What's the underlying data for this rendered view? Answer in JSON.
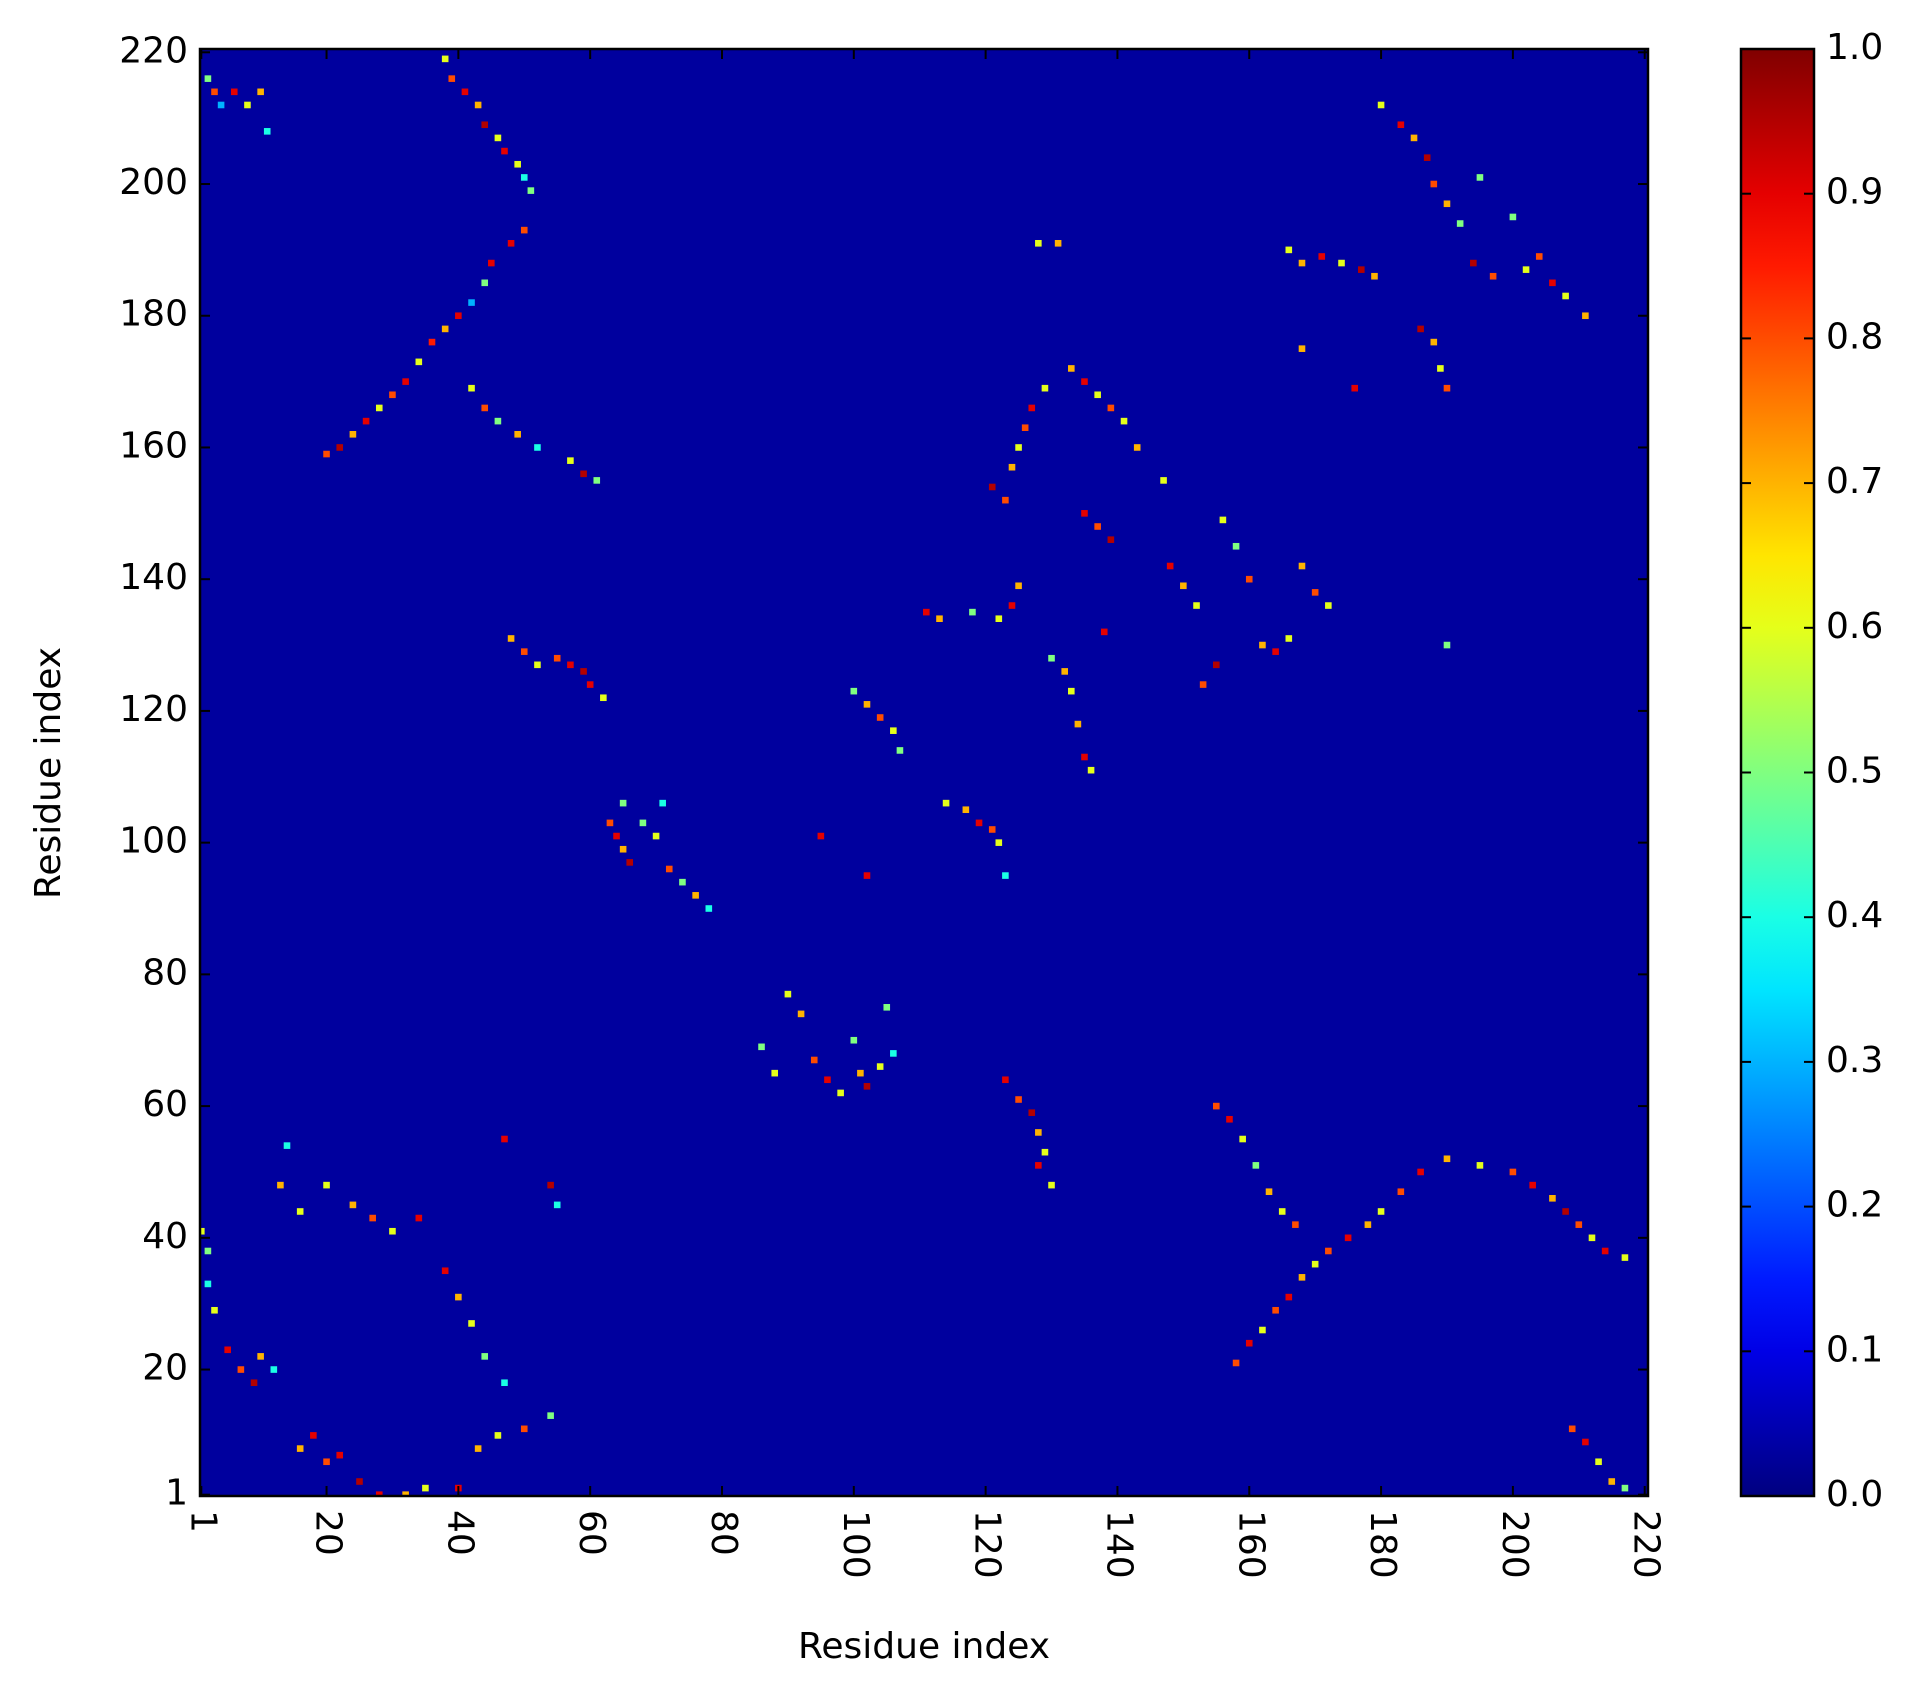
{
  "chart_data": {
    "type": "heatmap",
    "colormap": "jet",
    "x_label": "Residue index",
    "y_label": "Residue index",
    "xlim": [
      0.8,
      220.5
    ],
    "ylim": [
      0.8,
      220.5
    ],
    "xticks": [
      1,
      20,
      40,
      60,
      80,
      100,
      120,
      140,
      160,
      180,
      200,
      220
    ],
    "yticks": [
      1,
      20,
      40,
      60,
      80,
      100,
      120,
      140,
      160,
      180,
      200,
      220
    ],
    "default_value": 0.03,
    "clim": [
      0,
      1
    ],
    "cbar_ticks": [
      {
        "value": 0,
        "label": "0.0"
      },
      {
        "value": 0.1,
        "label": "0.1"
      },
      {
        "value": 0.2,
        "label": "0.2"
      },
      {
        "value": 0.3,
        "label": "0.3"
      },
      {
        "value": 0.4,
        "label": "0.4"
      },
      {
        "value": 0.5,
        "label": "0.5"
      },
      {
        "value": 0.6,
        "label": "0.6"
      },
      {
        "value": 0.7,
        "label": "0.7"
      },
      {
        "value": 0.8,
        "label": "0.8"
      },
      {
        "value": 0.9,
        "label": "0.9"
      },
      {
        "value": 1,
        "label": "1.0"
      }
    ],
    "cells": [
      [
        2,
        216,
        0.5
      ],
      [
        3,
        214,
        0.8
      ],
      [
        6,
        214,
        0.9
      ],
      [
        8,
        212,
        0.6
      ],
      [
        10,
        214,
        0.7
      ],
      [
        4,
        212,
        0.3
      ],
      [
        11,
        208,
        0.4
      ],
      [
        38,
        219,
        0.6
      ],
      [
        39,
        216,
        0.8
      ],
      [
        41,
        214,
        0.9
      ],
      [
        43,
        212,
        0.7
      ],
      [
        44,
        209,
        0.95
      ],
      [
        46,
        207,
        0.6
      ],
      [
        47,
        205,
        0.9
      ],
      [
        49,
        203,
        0.6
      ],
      [
        50,
        201,
        0.4
      ],
      [
        51,
        199,
        0.5
      ],
      [
        50,
        193,
        0.8
      ],
      [
        48,
        191,
        0.9
      ],
      [
        45,
        188,
        0.9
      ],
      [
        44,
        185,
        0.5
      ],
      [
        42,
        182,
        0.3
      ],
      [
        40,
        180,
        0.9
      ],
      [
        38,
        178,
        0.7
      ],
      [
        36,
        176,
        0.85
      ],
      [
        34,
        173,
        0.6
      ],
      [
        32,
        170,
        0.9
      ],
      [
        30,
        168,
        0.8
      ],
      [
        28,
        166,
        0.6
      ],
      [
        26,
        164,
        0.9
      ],
      [
        24,
        162,
        0.7
      ],
      [
        22,
        160,
        0.95
      ],
      [
        20,
        159,
        0.8
      ],
      [
        42,
        169,
        0.6
      ],
      [
        44,
        166,
        0.8
      ],
      [
        46,
        164,
        0.5
      ],
      [
        49,
        162,
        0.7
      ],
      [
        52,
        160,
        0.4
      ],
      [
        57,
        158,
        0.6
      ],
      [
        59,
        156,
        0.95
      ],
      [
        61,
        155,
        0.5
      ],
      [
        48,
        131,
        0.7
      ],
      [
        50,
        129,
        0.8
      ],
      [
        52,
        127,
        0.6
      ],
      [
        55,
        128,
        0.8
      ],
      [
        57,
        127,
        0.9
      ],
      [
        59,
        126,
        0.95
      ],
      [
        60,
        124,
        0.9
      ],
      [
        62,
        122,
        0.6
      ],
      [
        63,
        103,
        0.8
      ],
      [
        64,
        101,
        0.9
      ],
      [
        65,
        99,
        0.7
      ],
      [
        66,
        97,
        0.95
      ],
      [
        68,
        103,
        0.5
      ],
      [
        70,
        101,
        0.6
      ],
      [
        72,
        96,
        0.8
      ],
      [
        74,
        94,
        0.5
      ],
      [
        76,
        92,
        0.7
      ],
      [
        78,
        90,
        0.4
      ],
      [
        65,
        106,
        0.5
      ],
      [
        71,
        106,
        0.4
      ],
      [
        86,
        69,
        0.5
      ],
      [
        88,
        65,
        0.6
      ],
      [
        90,
        77,
        0.6
      ],
      [
        92,
        74,
        0.7
      ],
      [
        94,
        67,
        0.8
      ],
      [
        96,
        64,
        0.9
      ],
      [
        98,
        62,
        0.6
      ],
      [
        100,
        70,
        0.5
      ],
      [
        101,
        65,
        0.7
      ],
      [
        102,
        63,
        0.95
      ],
      [
        104,
        66,
        0.6
      ],
      [
        105,
        75,
        0.5
      ],
      [
        106,
        68,
        0.4
      ],
      [
        95,
        101,
        0.9
      ],
      [
        102,
        95,
        0.9
      ],
      [
        100,
        123,
        0.5
      ],
      [
        102,
        121,
        0.7
      ],
      [
        104,
        119,
        0.8
      ],
      [
        106,
        117,
        0.6
      ],
      [
        107,
        114,
        0.5
      ],
      [
        111,
        135,
        0.9
      ],
      [
        113,
        134,
        0.7
      ],
      [
        118,
        135,
        0.5
      ],
      [
        122,
        134,
        0.6
      ],
      [
        124,
        136,
        0.9
      ],
      [
        125,
        139,
        0.7
      ],
      [
        114,
        106,
        0.6
      ],
      [
        117,
        105,
        0.7
      ],
      [
        119,
        103,
        0.9
      ],
      [
        121,
        102,
        0.8
      ],
      [
        122,
        100,
        0.6
      ],
      [
        123,
        95,
        0.4
      ],
      [
        123,
        64,
        0.9
      ],
      [
        125,
        61,
        0.8
      ],
      [
        127,
        59,
        0.95
      ],
      [
        128,
        56,
        0.7
      ],
      [
        129,
        53,
        0.6
      ],
      [
        128,
        51,
        0.9
      ],
      [
        130,
        48,
        0.6
      ],
      [
        121,
        154,
        0.95
      ],
      [
        123,
        152,
        0.8
      ],
      [
        124,
        157,
        0.7
      ],
      [
        125,
        160,
        0.6
      ],
      [
        126,
        163,
        0.8
      ],
      [
        127,
        166,
        0.9
      ],
      [
        129,
        169,
        0.6
      ],
      [
        133,
        172,
        0.7
      ],
      [
        135,
        170,
        0.9
      ],
      [
        137,
        168,
        0.6
      ],
      [
        139,
        166,
        0.8
      ],
      [
        141,
        164,
        0.6
      ],
      [
        143,
        160,
        0.7
      ],
      [
        135,
        150,
        0.9
      ],
      [
        137,
        148,
        0.8
      ],
      [
        139,
        146,
        0.95
      ],
      [
        147,
        155,
        0.6
      ],
      [
        130,
        128,
        0.5
      ],
      [
        132,
        126,
        0.7
      ],
      [
        133,
        123,
        0.6
      ],
      [
        134,
        118,
        0.7
      ],
      [
        135,
        113,
        0.9
      ],
      [
        136,
        111,
        0.6
      ],
      [
        138,
        132,
        0.9
      ],
      [
        148,
        142,
        0.9
      ],
      [
        150,
        139,
        0.7
      ],
      [
        152,
        136,
        0.6
      ],
      [
        153,
        124,
        0.8
      ],
      [
        155,
        127,
        0.95
      ],
      [
        156,
        149,
        0.6
      ],
      [
        158,
        145,
        0.5
      ],
      [
        160,
        140,
        0.8
      ],
      [
        162,
        130,
        0.7
      ],
      [
        164,
        129,
        0.9
      ],
      [
        166,
        131,
        0.6
      ],
      [
        168,
        142,
        0.7
      ],
      [
        170,
        138,
        0.8
      ],
      [
        172,
        136,
        0.6
      ],
      [
        155,
        60,
        0.8
      ],
      [
        157,
        58,
        0.9
      ],
      [
        159,
        55,
        0.6
      ],
      [
        161,
        51,
        0.5
      ],
      [
        163,
        47,
        0.7
      ],
      [
        165,
        44,
        0.6
      ],
      [
        167,
        42,
        0.8
      ],
      [
        158,
        21,
        0.8
      ],
      [
        160,
        24,
        0.9
      ],
      [
        162,
        26,
        0.6
      ],
      [
        164,
        29,
        0.8
      ],
      [
        166,
        31,
        0.9
      ],
      [
        168,
        34,
        0.7
      ],
      [
        170,
        36,
        0.6
      ],
      [
        172,
        38,
        0.8
      ],
      [
        175,
        40,
        0.9
      ],
      [
        178,
        42,
        0.7
      ],
      [
        180,
        44,
        0.6
      ],
      [
        183,
        47,
        0.8
      ],
      [
        186,
        50,
        0.9
      ],
      [
        190,
        52,
        0.7
      ],
      [
        195,
        51,
        0.6
      ],
      [
        200,
        50,
        0.8
      ],
      [
        203,
        48,
        0.9
      ],
      [
        206,
        46,
        0.7
      ],
      [
        208,
        44,
        0.95
      ],
      [
        210,
        42,
        0.8
      ],
      [
        212,
        40,
        0.6
      ],
      [
        214,
        38,
        0.9
      ],
      [
        217,
        37,
        0.6
      ],
      [
        209,
        11,
        0.8
      ],
      [
        211,
        9,
        0.9
      ],
      [
        213,
        6,
        0.6
      ],
      [
        215,
        3,
        0.7
      ],
      [
        217,
        2,
        0.5
      ],
      [
        180,
        212,
        0.6
      ],
      [
        183,
        209,
        0.9
      ],
      [
        185,
        207,
        0.7
      ],
      [
        187,
        204,
        0.95
      ],
      [
        188,
        200,
        0.8
      ],
      [
        190,
        197,
        0.7
      ],
      [
        192,
        194,
        0.5
      ],
      [
        195,
        201,
        0.5
      ],
      [
        166,
        190,
        0.6
      ],
      [
        168,
        188,
        0.7
      ],
      [
        171,
        189,
        0.9
      ],
      [
        174,
        188,
        0.6
      ],
      [
        177,
        187,
        0.95
      ],
      [
        179,
        186,
        0.7
      ],
      [
        194,
        188,
        0.95
      ],
      [
        197,
        186,
        0.8
      ],
      [
        200,
        195,
        0.5
      ],
      [
        202,
        187,
        0.6
      ],
      [
        204,
        189,
        0.8
      ],
      [
        206,
        185,
        0.9
      ],
      [
        208,
        183,
        0.6
      ],
      [
        211,
        180,
        0.7
      ],
      [
        186,
        178,
        0.95
      ],
      [
        188,
        176,
        0.7
      ],
      [
        189,
        172,
        0.6
      ],
      [
        190,
        169,
        0.8
      ],
      [
        176,
        169,
        0.9
      ],
      [
        168,
        175,
        0.7
      ],
      [
        190,
        130,
        0.5
      ],
      [
        128,
        191,
        0.6
      ],
      [
        131,
        191,
        0.7
      ],
      [
        1,
        41,
        0.6
      ],
      [
        2,
        38,
        0.5
      ],
      [
        2,
        33,
        0.4
      ],
      [
        3,
        29,
        0.6
      ],
      [
        5,
        23,
        0.9
      ],
      [
        7,
        20,
        0.8
      ],
      [
        9,
        18,
        0.95
      ],
      [
        10,
        22,
        0.7
      ],
      [
        12,
        20,
        0.4
      ],
      [
        13,
        48,
        0.7
      ],
      [
        14,
        54,
        0.4
      ],
      [
        16,
        44,
        0.6
      ],
      [
        16,
        8,
        0.7
      ],
      [
        18,
        10,
        0.9
      ],
      [
        20,
        6,
        0.8
      ],
      [
        22,
        7,
        0.9
      ],
      [
        25,
        3,
        0.95
      ],
      [
        28,
        1,
        0.9
      ],
      [
        32,
        1,
        0.7
      ],
      [
        35,
        2,
        0.6
      ],
      [
        40,
        2,
        0.9
      ],
      [
        43,
        8,
        0.7
      ],
      [
        46,
        10,
        0.6
      ],
      [
        50,
        11,
        0.8
      ],
      [
        54,
        13,
        0.5
      ],
      [
        38,
        35,
        0.9
      ],
      [
        40,
        31,
        0.7
      ],
      [
        42,
        27,
        0.6
      ],
      [
        44,
        22,
        0.5
      ],
      [
        47,
        18,
        0.4
      ],
      [
        20,
        48,
        0.6
      ],
      [
        24,
        45,
        0.7
      ],
      [
        27,
        43,
        0.8
      ],
      [
        30,
        41,
        0.6
      ],
      [
        34,
        43,
        0.9
      ],
      [
        47,
        55,
        0.9
      ],
      [
        54,
        48,
        0.95
      ],
      [
        55,
        45,
        0.4
      ]
    ]
  }
}
